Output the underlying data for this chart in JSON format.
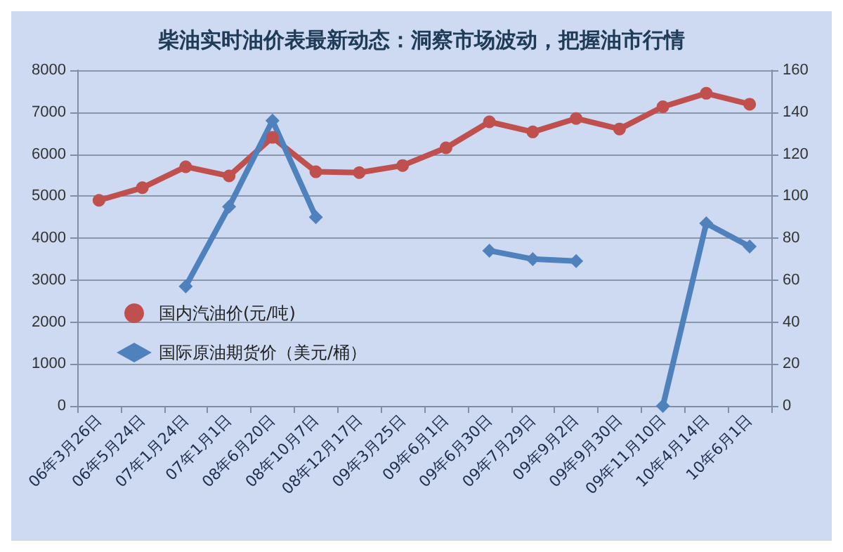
{
  "chart_data": {
    "type": "line",
    "title": "柴油实时油价表最新动态：洞察市场波动，把握油市行情",
    "categories": [
      "06年3月26日",
      "06年5月24日",
      "07年1月24日",
      "07年1月1日",
      "08年6月20日",
      "08年10月7日",
      "08年12月17日",
      "09年3月25日",
      "09年6月1日",
      "09年6月30日",
      "09年7月29日",
      "09年9月2日",
      "09年9月30日",
      "09年11月10日",
      "10年4月14日",
      "10年6月1日"
    ],
    "series": [
      {
        "name": "国内汽油价(元/吨)",
        "color": "#c0504d",
        "marker": "circle",
        "values": [
          4900,
          5200,
          5700,
          5480,
          6400,
          5580,
          5560,
          5730,
          6150,
          6770,
          6530,
          6850,
          6600,
          7130,
          7450,
          7190
        ]
      },
      {
        "name": "国际原油期货价（美元/桶）",
        "color": "#4f81bd",
        "marker": "diamond",
        "axis": "y2",
        "values": [
          null,
          null,
          57,
          95,
          136,
          90,
          null,
          null,
          null,
          74,
          70,
          69,
          null,
          0,
          87,
          76
        ]
      }
    ],
    "ylim": [
      0,
      8000
    ],
    "yticks": [
      0,
      1000,
      2000,
      3000,
      4000,
      5000,
      6000,
      7000,
      8000
    ],
    "y2lim": [
      0,
      160
    ],
    "y2ticks": [
      0,
      20,
      40,
      60,
      80,
      100,
      120,
      140,
      160
    ],
    "grid": "y",
    "legend": "bottom left",
    "line_style": "solid"
  }
}
